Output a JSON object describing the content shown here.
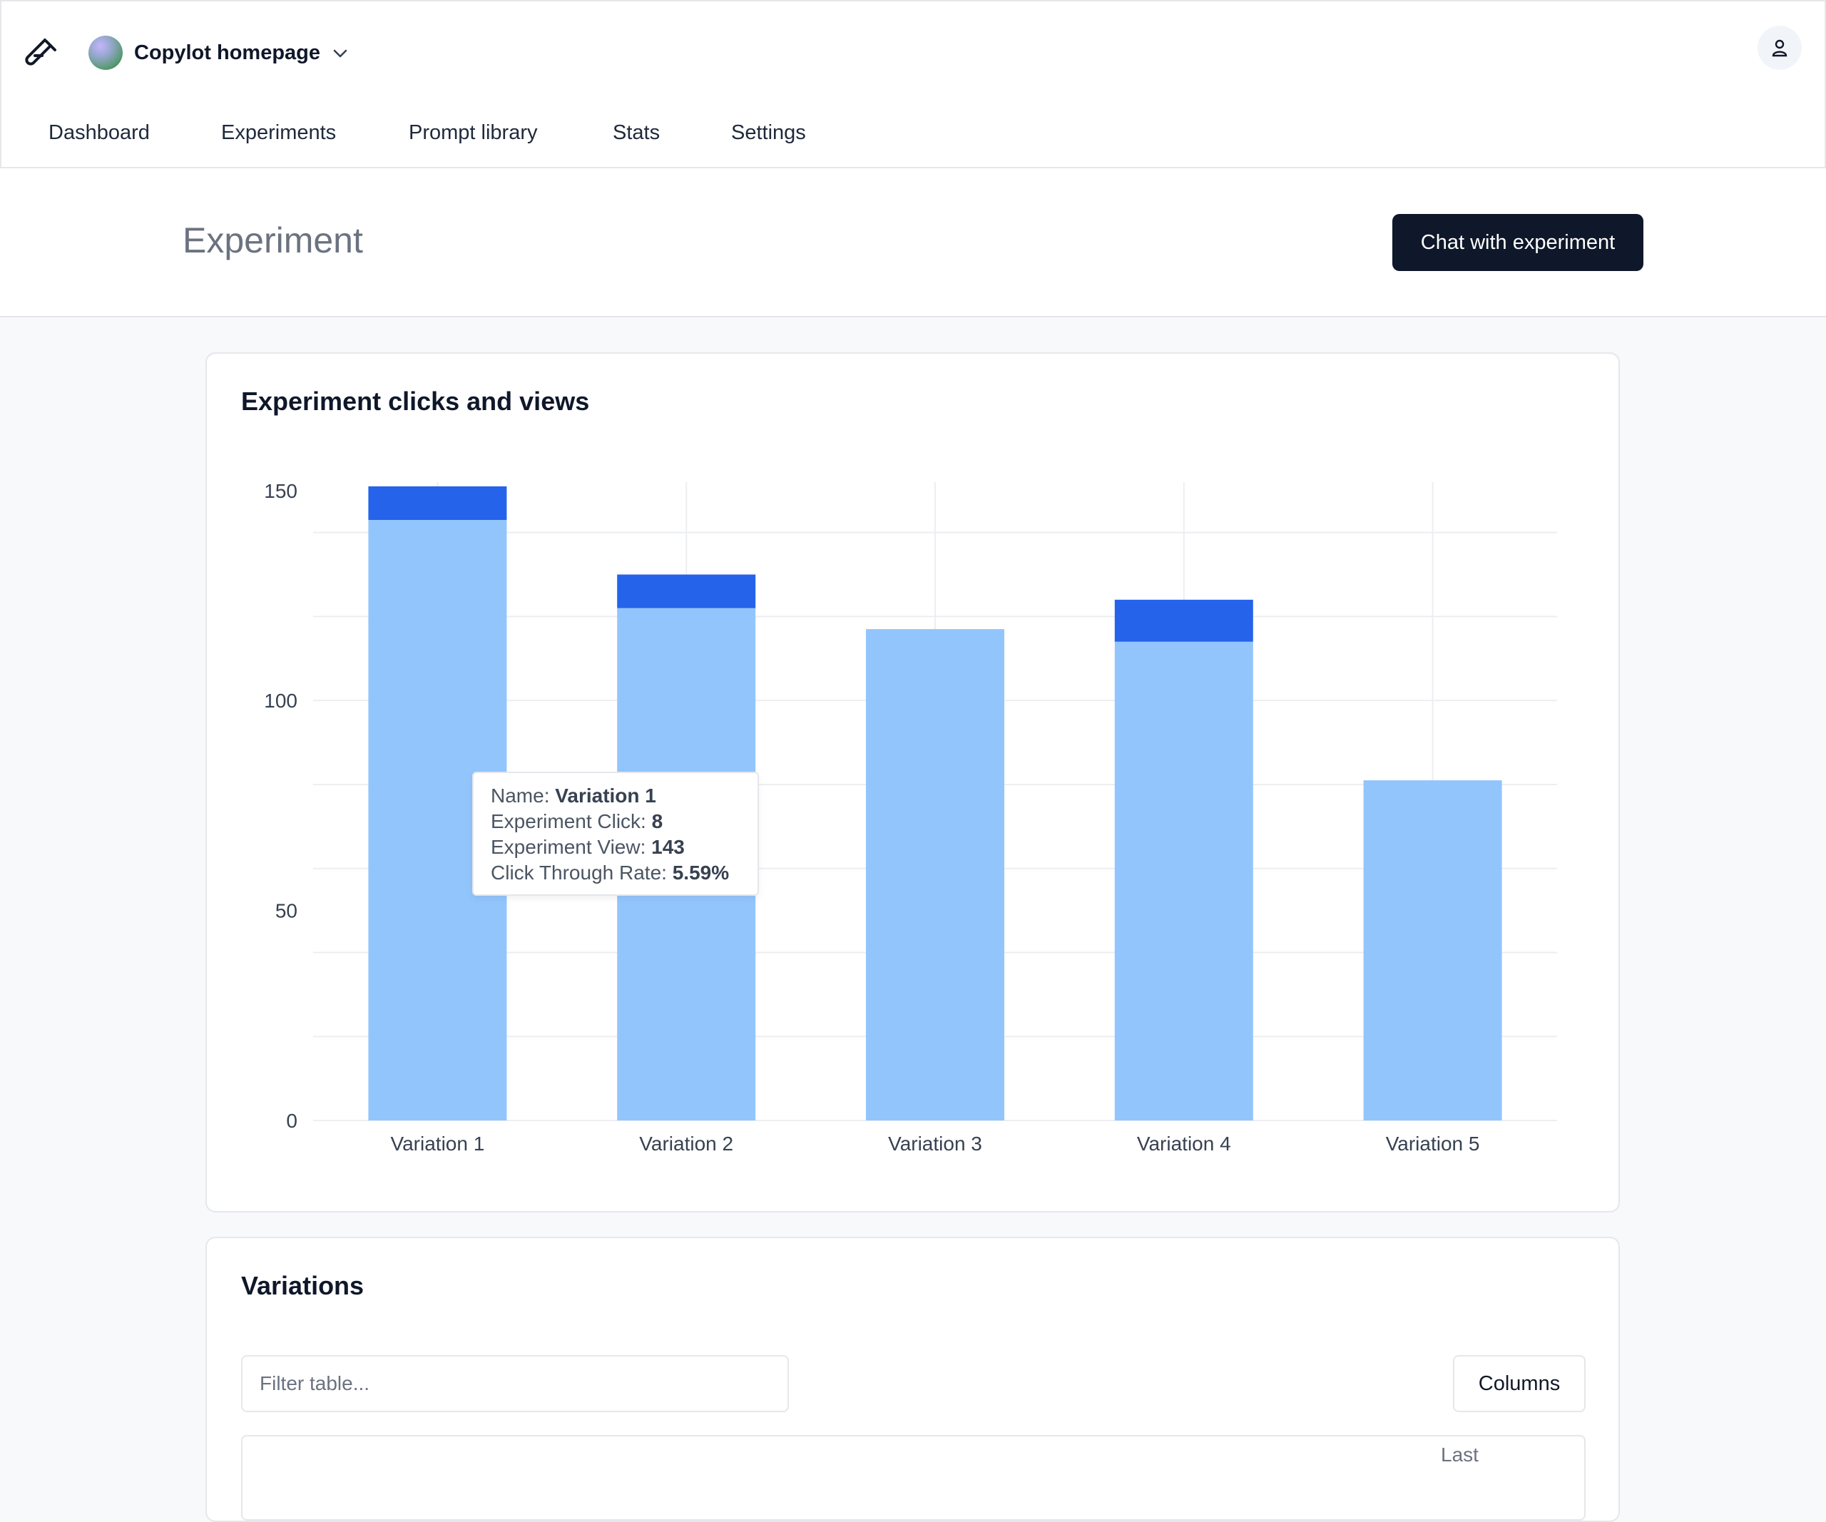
{
  "header": {
    "project_name": "Copylot homepage",
    "nav": [
      "Dashboard",
      "Experiments",
      "Prompt library",
      "Stats",
      "Settings"
    ]
  },
  "page": {
    "title": "Experiment",
    "chat_button": "Chat with experiment"
  },
  "chart_card": {
    "title": "Experiment clicks and views"
  },
  "chart_data": {
    "type": "bar",
    "stacked": true,
    "title": "Experiment clicks and views",
    "categories": [
      "Variation 1",
      "Variation 2",
      "Variation 3",
      "Variation 4",
      "Variation 5"
    ],
    "series": [
      {
        "name": "Experiment View",
        "color": "#93c5fd",
        "values": [
          143,
          122,
          117,
          114,
          81
        ]
      },
      {
        "name": "Experiment Click",
        "color": "#2563eb",
        "values": [
          8,
          8,
          0,
          10,
          0
        ]
      }
    ],
    "yticks": [
      "0",
      "50",
      "100",
      "150"
    ],
    "ylim": [
      0,
      152
    ],
    "grid": true
  },
  "tooltip": {
    "name_label": "Name:",
    "name_value": "Variation 1",
    "click_label": "Experiment Click:",
    "click_value": "8",
    "view_label": "Experiment View:",
    "view_value": "143",
    "ctr_label": "Click Through Rate:",
    "ctr_value": "5.59%"
  },
  "variations_card": {
    "title": "Variations",
    "filter_placeholder": "Filter table...",
    "columns_button": "Columns",
    "partial_header": "Last"
  },
  "icons": {
    "logo": "test-tube-icon",
    "project_dropdown": "chevron-down-icon",
    "user": "user-icon"
  }
}
